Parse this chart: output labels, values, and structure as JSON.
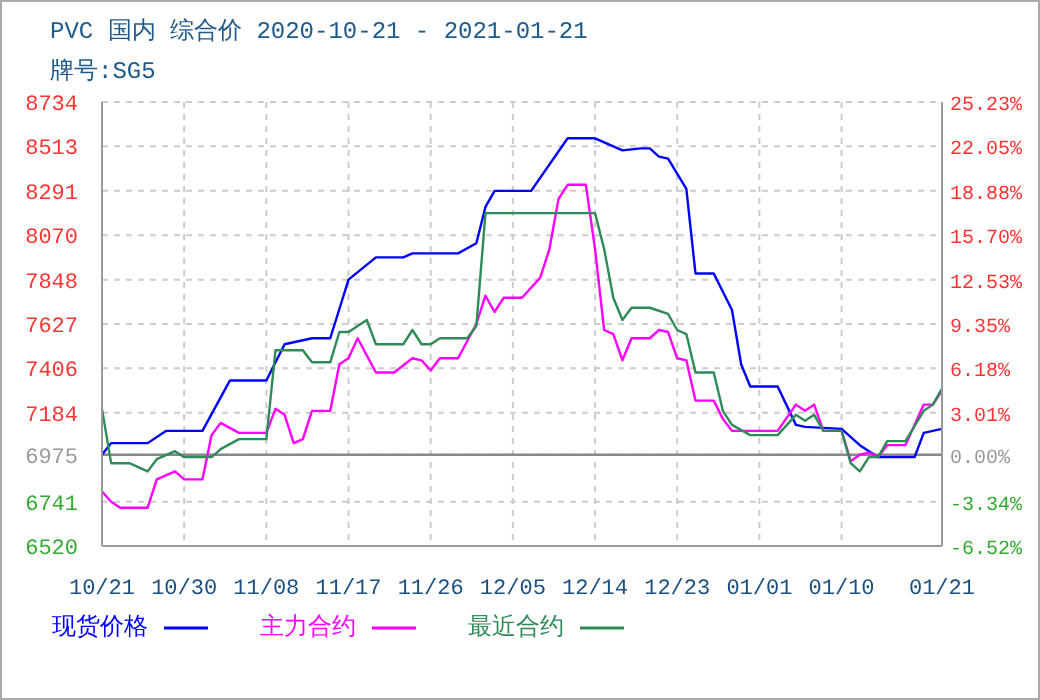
{
  "chart_data": {
    "type": "line",
    "title": "PVC 国内 综合价 2020-10-21 - 2021-01-21",
    "subtitle": "牌号:SG5",
    "xlim": [
      "2020-10-21",
      "2021-01-21"
    ],
    "xticks": [
      {
        "value": "2020-10-21",
        "label": "10/21"
      },
      {
        "value": "2020-10-30",
        "label": "10/30"
      },
      {
        "value": "2020-11-08",
        "label": "11/08"
      },
      {
        "value": "2020-11-17",
        "label": "11/17"
      },
      {
        "value": "2020-11-26",
        "label": "11/26"
      },
      {
        "value": "2020-12-05",
        "label": "12/05"
      },
      {
        "value": "2020-12-14",
        "label": "12/14"
      },
      {
        "value": "2020-12-23",
        "label": "12/23"
      },
      {
        "value": "2021-01-01",
        "label": "01/01"
      },
      {
        "value": "2021-01-10",
        "label": "01/10"
      },
      {
        "value": "2021-01-21",
        "label": "01/21"
      }
    ],
    "ylim": [
      6520,
      8734
    ],
    "yticks": [
      6520,
      6741,
      6975,
      7184,
      7406,
      7627,
      7848,
      8070,
      8291,
      8513,
      8734
    ],
    "y2lim": [
      -6.52,
      25.23
    ],
    "y2ticks": [
      {
        "value": -6.52,
        "label": "-6.52%"
      },
      {
        "value": -3.34,
        "label": "-3.34%"
      },
      {
        "value": 0,
        "label": "0.00%"
      },
      {
        "value": 3.01,
        "label": "3.01%"
      },
      {
        "value": 6.18,
        "label": "6.18%"
      },
      {
        "value": 9.35,
        "label": "9.35%"
      },
      {
        "value": 12.53,
        "label": "12.53%"
      },
      {
        "value": 15.7,
        "label": "15.70%"
      },
      {
        "value": 18.88,
        "label": "18.88%"
      },
      {
        "value": 22.05,
        "label": "22.05%"
      },
      {
        "value": 25.23,
        "label": "25.23%"
      }
    ],
    "ref_lines": [
      {
        "axis": "y",
        "value": 6975,
        "color": "#888888"
      }
    ],
    "grid": true,
    "legend": "bottom",
    "line_style": "solid",
    "marker": "none",
    "series": [
      {
        "name": "现货价格",
        "color": "#0000ff",
        "x": [
          "2020-10-21",
          "2020-10-22",
          "2020-10-23",
          "2020-10-26",
          "2020-10-28",
          "2020-11-01",
          "2020-11-04",
          "2020-11-08",
          "2020-11-10",
          "2020-11-13",
          "2020-11-15",
          "2020-11-17",
          "2020-11-20",
          "2020-11-23",
          "2020-11-24",
          "2020-11-29",
          "2020-12-01",
          "2020-12-02",
          "2020-12-03",
          "2020-12-07",
          "2020-12-11",
          "2020-12-14",
          "2020-12-17",
          "2020-12-19",
          "2020-12-20",
          "2020-12-21",
          "2020-12-22",
          "2020-12-24",
          "2020-12-25",
          "2020-12-27",
          "2020-12-29",
          "2020-12-30",
          "2020-12-31",
          "2021-01-03",
          "2021-01-05",
          "2021-01-06",
          "2021-01-10",
          "2021-01-12",
          "2021-01-14",
          "2021-01-18",
          "2021-01-19",
          "2021-01-21"
        ],
        "values": [
          6975,
          7033,
          7033,
          7033,
          7094,
          7094,
          7345,
          7345,
          7526,
          7556,
          7556,
          7848,
          7959,
          7959,
          7979,
          7979,
          8030,
          8211,
          8291,
          8291,
          8553,
          8553,
          8493,
          8503,
          8503,
          8462,
          8452,
          8301,
          7879,
          7879,
          7697,
          7426,
          7315,
          7315,
          7124,
          7114,
          7104,
          7023,
          6963,
          6963,
          7084,
          7104
        ]
      },
      {
        "name": "主力合约",
        "color": "#ff00ff",
        "x": [
          "2020-10-21",
          "2020-10-22",
          "2020-10-23",
          "2020-10-26",
          "2020-10-27",
          "2020-10-29",
          "2020-10-30",
          "2020-11-01",
          "2020-11-02",
          "2020-11-03",
          "2020-11-05",
          "2020-11-08",
          "2020-11-09",
          "2020-11-10",
          "2020-11-11",
          "2020-11-12",
          "2020-11-13",
          "2020-11-15",
          "2020-11-16",
          "2020-11-17",
          "2020-11-18",
          "2020-11-20",
          "2020-11-22",
          "2020-11-24",
          "2020-11-25",
          "2020-11-26",
          "2020-11-27",
          "2020-11-29",
          "2020-12-01",
          "2020-12-02",
          "2020-12-03",
          "2020-12-04",
          "2020-12-06",
          "2020-12-08",
          "2020-12-09",
          "2020-12-10",
          "2020-12-11",
          "2020-12-13",
          "2020-12-14",
          "2020-12-15",
          "2020-12-16",
          "2020-12-17",
          "2020-12-18",
          "2020-12-20",
          "2020-12-21",
          "2020-12-22",
          "2020-12-23",
          "2020-12-24",
          "2020-12-25",
          "2020-12-27",
          "2020-12-28",
          "2020-12-29",
          "2021-01-03",
          "2021-01-05",
          "2021-01-06",
          "2021-01-07",
          "2021-01-08",
          "2021-01-10",
          "2021-01-11",
          "2021-01-12",
          "2021-01-13",
          "2021-01-14",
          "2021-01-15",
          "2021-01-17",
          "2021-01-19",
          "2021-01-20",
          "2021-01-21"
        ],
        "values": [
          6792,
          6741,
          6711,
          6711,
          6852,
          6892,
          6852,
          6852,
          7073,
          7134,
          7084,
          7084,
          7204,
          7174,
          7033,
          7053,
          7194,
          7194,
          7426,
          7456,
          7556,
          7385,
          7385,
          7456,
          7446,
          7395,
          7456,
          7456,
          7627,
          7768,
          7687,
          7758,
          7758,
          7858,
          8000,
          8251,
          8321,
          8321,
          8000,
          7597,
          7577,
          7446,
          7556,
          7556,
          7597,
          7587,
          7456,
          7446,
          7245,
          7245,
          7154,
          7094,
          7094,
          7225,
          7194,
          7225,
          7094,
          7094,
          6943,
          6975,
          6985,
          6963,
          7023,
          7023,
          7225,
          7225,
          7295
        ]
      },
      {
        "name": "最近合约",
        "color": "#2e8b57",
        "x": [
          "2020-10-21",
          "2020-10-22",
          "2020-10-24",
          "2020-10-26",
          "2020-10-27",
          "2020-10-29",
          "2020-10-30",
          "2020-11-02",
          "2020-11-03",
          "2020-11-05",
          "2020-11-08",
          "2020-11-09",
          "2020-11-12",
          "2020-11-13",
          "2020-11-15",
          "2020-11-16",
          "2020-11-17",
          "2020-11-19",
          "2020-11-20",
          "2020-11-23",
          "2020-11-24",
          "2020-11-25",
          "2020-11-26",
          "2020-11-27",
          "2020-11-30",
          "2020-12-01",
          "2020-12-02",
          "2020-12-14",
          "2020-12-15",
          "2020-12-16",
          "2020-12-17",
          "2020-12-18",
          "2020-12-20",
          "2020-12-22",
          "2020-12-23",
          "2020-12-24",
          "2020-12-25",
          "2020-12-27",
          "2020-12-28",
          "2020-12-29",
          "2020-12-31",
          "2021-01-03",
          "2021-01-05",
          "2021-01-06",
          "2021-01-07",
          "2021-01-08",
          "2021-01-10",
          "2021-01-11",
          "2021-01-12",
          "2021-01-13",
          "2021-01-14",
          "2021-01-15",
          "2021-01-17",
          "2021-01-19",
          "2021-01-20",
          "2021-01-21"
        ],
        "values": [
          7204,
          6933,
          6933,
          6892,
          6953,
          6993,
          6963,
          6963,
          7003,
          7053,
          7053,
          7496,
          7496,
          7436,
          7436,
          7587,
          7587,
          7647,
          7526,
          7526,
          7597,
          7526,
          7526,
          7556,
          7556,
          7617,
          8180,
          8180,
          8000,
          7758,
          7647,
          7708,
          7708,
          7677,
          7597,
          7577,
          7385,
          7385,
          7194,
          7124,
          7073,
          7073,
          7174,
          7144,
          7174,
          7094,
          7094,
          6933,
          6892,
          6963,
          6963,
          7043,
          7043,
          7194,
          7225,
          7305
        ]
      }
    ]
  }
}
